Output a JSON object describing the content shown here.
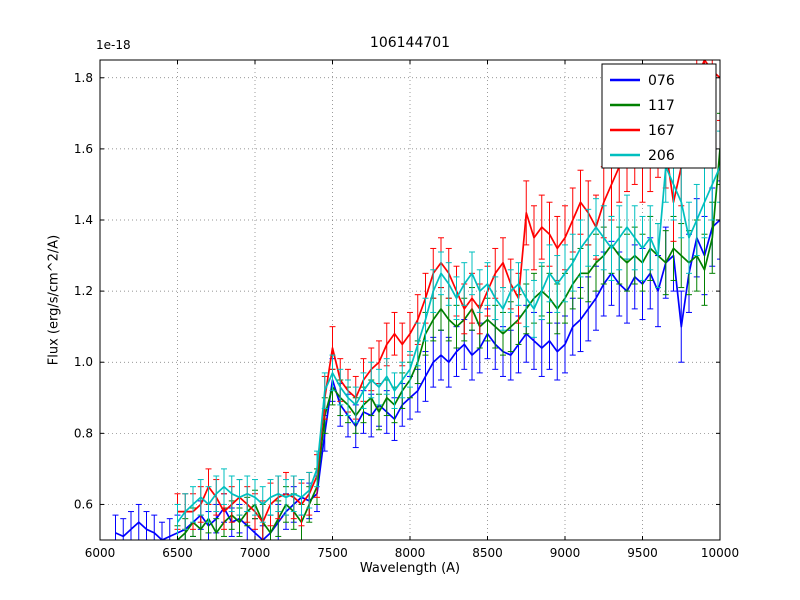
{
  "figure": {
    "title": "106144701",
    "offset_text": "1e-18",
    "xlabel": "Wavelength (A)",
    "ylabel": "Flux (erg/s/cm^2/A)"
  },
  "chart_data": {
    "type": "line",
    "title": "106144701",
    "xlabel": "Wavelength (A)",
    "ylabel": "Flux (erg/s/cm^2/A)",
    "y_offset_label": "1e-18",
    "xlim": [
      6000,
      10000
    ],
    "ylim": [
      0.5,
      1.85
    ],
    "xticks": [
      6000,
      6500,
      7000,
      7500,
      8000,
      8500,
      9000,
      9500,
      10000
    ],
    "xtick_labels": [
      "6000",
      "6500",
      "7000",
      "7500",
      "8000",
      "8500",
      "9000",
      "9500",
      "10000"
    ],
    "yticks": [
      0.6,
      0.8,
      1.0,
      1.2,
      1.4,
      1.6,
      1.8
    ],
    "ytick_labels": [
      "0.6",
      "0.8",
      "1.0",
      "1.2",
      "1.4",
      "1.6",
      "1.8"
    ],
    "grid": true,
    "grid_style": "dotted",
    "legend": {
      "position": "upper right",
      "entries": [
        "076",
        "117",
        "167",
        "206"
      ]
    },
    "series": [
      {
        "name": "076",
        "color": "#0000ff",
        "x_start": 6100,
        "x_step": 50,
        "y": [
          0.52,
          0.51,
          0.53,
          0.55,
          0.53,
          0.52,
          0.5,
          0.51,
          0.52,
          0.53,
          0.55,
          0.57,
          0.54,
          0.56,
          0.59,
          0.55,
          0.56,
          0.54,
          0.52,
          0.5,
          0.52,
          0.55,
          0.58,
          0.6,
          0.62,
          0.61,
          0.63,
          0.8,
          0.95,
          0.88,
          0.85,
          0.82,
          0.86,
          0.85,
          0.88,
          0.86,
          0.84,
          0.88,
          0.9,
          0.92,
          0.96,
          1.0,
          1.02,
          1.0,
          1.03,
          1.05,
          1.02,
          1.04,
          1.08,
          1.05,
          1.03,
          1.02,
          1.05,
          1.08,
          1.06,
          1.04,
          1.06,
          1.03,
          1.05,
          1.1,
          1.12,
          1.15,
          1.18,
          1.22,
          1.25,
          1.22,
          1.2,
          1.24,
          1.22,
          1.25,
          1.2,
          1.28,
          1.3,
          1.1,
          1.25,
          1.35,
          1.3,
          1.38,
          1.4
        ],
        "yerr": [
          0.05,
          0.05,
          0.05,
          0.05,
          0.05,
          0.05,
          0.05,
          0.05,
          0.05,
          0.05,
          0.04,
          0.04,
          0.04,
          0.04,
          0.04,
          0.04,
          0.04,
          0.04,
          0.04,
          0.04,
          0.05,
          0.05,
          0.05,
          0.05,
          0.05,
          0.05,
          0.05,
          0.05,
          0.06,
          0.06,
          0.06,
          0.06,
          0.06,
          0.06,
          0.06,
          0.06,
          0.06,
          0.06,
          0.06,
          0.06,
          0.07,
          0.07,
          0.07,
          0.07,
          0.07,
          0.07,
          0.07,
          0.07,
          0.07,
          0.07,
          0.07,
          0.07,
          0.08,
          0.08,
          0.08,
          0.08,
          0.08,
          0.08,
          0.08,
          0.08,
          0.09,
          0.09,
          0.09,
          0.09,
          0.09,
          0.09,
          0.09,
          0.09,
          0.1,
          0.1,
          0.1,
          0.1,
          0.1,
          0.1,
          0.11,
          0.11,
          0.11,
          0.11,
          0.11
        ]
      },
      {
        "name": "117",
        "color": "#008000",
        "x_start": 6500,
        "x_step": 50,
        "y": [
          0.5,
          0.52,
          0.55,
          0.53,
          0.56,
          0.52,
          0.55,
          0.57,
          0.55,
          0.58,
          0.6,
          0.55,
          0.52,
          0.56,
          0.6,
          0.58,
          0.55,
          0.6,
          0.65,
          0.85,
          0.93,
          0.9,
          0.88,
          0.85,
          0.88,
          0.9,
          0.86,
          0.9,
          0.88,
          0.92,
          0.95,
          1.0,
          1.08,
          1.12,
          1.15,
          1.12,
          1.1,
          1.12,
          1.15,
          1.1,
          1.12,
          1.1,
          1.08,
          1.1,
          1.12,
          1.15,
          1.18,
          1.2,
          1.18,
          1.15,
          1.18,
          1.22,
          1.25,
          1.25,
          1.28,
          1.3,
          1.33,
          1.3,
          1.28,
          1.3,
          1.28,
          1.32,
          1.3,
          1.28,
          1.32,
          1.3,
          1.28,
          1.3,
          1.26,
          1.35,
          1.6
        ],
        "yerr": [
          0.04,
          0.04,
          0.04,
          0.04,
          0.04,
          0.04,
          0.04,
          0.04,
          0.04,
          0.04,
          0.04,
          0.05,
          0.05,
          0.05,
          0.05,
          0.05,
          0.05,
          0.05,
          0.05,
          0.05,
          0.05,
          0.05,
          0.05,
          0.05,
          0.05,
          0.05,
          0.05,
          0.05,
          0.05,
          0.05,
          0.05,
          0.06,
          0.06,
          0.06,
          0.06,
          0.06,
          0.06,
          0.06,
          0.06,
          0.06,
          0.06,
          0.06,
          0.06,
          0.07,
          0.07,
          0.07,
          0.07,
          0.07,
          0.07,
          0.07,
          0.07,
          0.07,
          0.07,
          0.08,
          0.08,
          0.08,
          0.08,
          0.08,
          0.08,
          0.08,
          0.08,
          0.09,
          0.09,
          0.09,
          0.09,
          0.09,
          0.09,
          0.1,
          0.1,
          0.1,
          0.1
        ]
      },
      {
        "name": "167",
        "color": "#ff0000",
        "x_start": 6500,
        "x_step": 50,
        "y": [
          0.58,
          0.58,
          0.58,
          0.6,
          0.65,
          0.62,
          0.58,
          0.6,
          0.62,
          0.6,
          0.58,
          0.55,
          0.6,
          0.62,
          0.63,
          0.62,
          0.6,
          0.63,
          0.68,
          0.9,
          1.04,
          0.95,
          0.92,
          0.9,
          0.95,
          0.98,
          1.0,
          1.05,
          1.08,
          1.05,
          1.08,
          1.12,
          1.18,
          1.25,
          1.28,
          1.25,
          1.2,
          1.15,
          1.18,
          1.15,
          1.2,
          1.25,
          1.28,
          1.22,
          1.18,
          1.42,
          1.35,
          1.38,
          1.36,
          1.32,
          1.35,
          1.4,
          1.45,
          1.42,
          1.38,
          1.45,
          1.5,
          1.55,
          1.58,
          1.6,
          1.55,
          1.58,
          1.62,
          1.6,
          1.45,
          1.55,
          1.7,
          1.8,
          1.85,
          1.82,
          1.8
        ],
        "yerr": [
          0.05,
          0.05,
          0.05,
          0.05,
          0.05,
          0.05,
          0.05,
          0.05,
          0.05,
          0.05,
          0.05,
          0.06,
          0.06,
          0.06,
          0.06,
          0.06,
          0.06,
          0.06,
          0.06,
          0.06,
          0.06,
          0.06,
          0.06,
          0.06,
          0.06,
          0.06,
          0.06,
          0.06,
          0.06,
          0.06,
          0.06,
          0.07,
          0.07,
          0.07,
          0.07,
          0.07,
          0.07,
          0.07,
          0.07,
          0.07,
          0.07,
          0.07,
          0.07,
          0.07,
          0.07,
          0.09,
          0.09,
          0.09,
          0.09,
          0.09,
          0.09,
          0.09,
          0.09,
          0.09,
          0.09,
          0.1,
          0.1,
          0.1,
          0.1,
          0.1,
          0.1,
          0.1,
          0.1,
          0.11,
          0.11,
          0.11,
          0.11,
          0.11,
          0.12,
          0.12,
          0.12
        ]
      },
      {
        "name": "206",
        "color": "#00bfbf",
        "x_start": 6500,
        "x_step": 50,
        "y": [
          0.55,
          0.58,
          0.6,
          0.62,
          0.6,
          0.63,
          0.65,
          0.63,
          0.62,
          0.63,
          0.62,
          0.6,
          0.62,
          0.63,
          0.62,
          0.63,
          0.62,
          0.64,
          0.7,
          0.92,
          0.97,
          0.93,
          0.9,
          0.88,
          0.92,
          0.95,
          0.93,
          0.96,
          0.92,
          0.95,
          0.98,
          1.05,
          1.12,
          1.2,
          1.25,
          1.22,
          1.18,
          1.22,
          1.25,
          1.2,
          1.22,
          1.18,
          1.15,
          1.2,
          1.22,
          1.18,
          1.15,
          1.2,
          1.25,
          1.22,
          1.25,
          1.28,
          1.32,
          1.35,
          1.38,
          1.35,
          1.32,
          1.35,
          1.38,
          1.35,
          1.32,
          1.35,
          1.3,
          1.55,
          1.5,
          1.45,
          1.35,
          1.4,
          1.45,
          1.5,
          1.55
        ],
        "yerr": [
          0.05,
          0.05,
          0.05,
          0.05,
          0.05,
          0.05,
          0.05,
          0.05,
          0.05,
          0.05,
          0.05,
          0.05,
          0.05,
          0.05,
          0.05,
          0.05,
          0.05,
          0.05,
          0.05,
          0.05,
          0.05,
          0.05,
          0.05,
          0.05,
          0.05,
          0.05,
          0.05,
          0.05,
          0.05,
          0.05,
          0.05,
          0.06,
          0.06,
          0.06,
          0.06,
          0.06,
          0.06,
          0.06,
          0.06,
          0.06,
          0.06,
          0.06,
          0.06,
          0.06,
          0.06,
          0.08,
          0.08,
          0.08,
          0.08,
          0.08,
          0.08,
          0.08,
          0.08,
          0.08,
          0.08,
          0.09,
          0.09,
          0.09,
          0.09,
          0.09,
          0.09,
          0.09,
          0.09,
          0.1,
          0.1,
          0.1,
          0.1,
          0.1,
          0.1,
          0.1,
          0.1
        ]
      }
    ]
  }
}
